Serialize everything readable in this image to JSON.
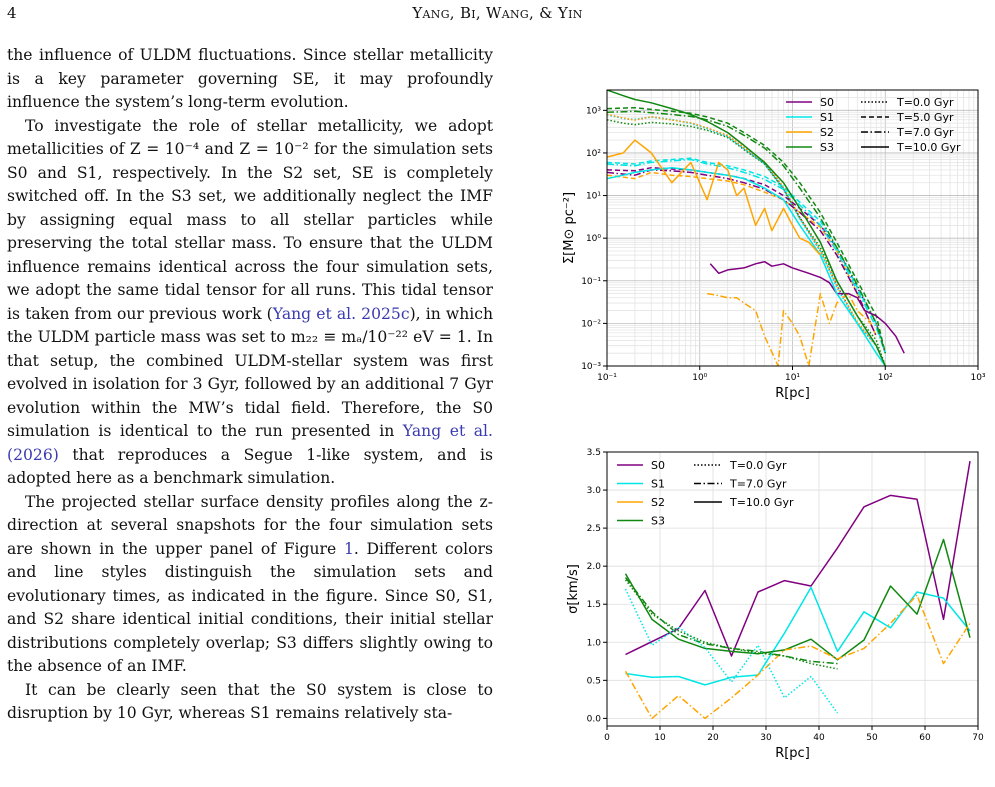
{
  "header": {
    "page_number": "4",
    "authors": "Yang, Bi, Wang, & Yin"
  },
  "body": {
    "paragraphs": [
      {
        "text": "the influence of ULDM fluctuations. Since stellar metallicity is a key parameter governing SE, it may profoundly influence the system’s long-term evolution.",
        "indent": false
      },
      {
        "text": "To investigate the role of stellar metallicity, we adopt metallicities of Z = 10⁻⁴ and Z = 10⁻² for the simulation sets S0 and S1, respectively. In the S2 set, SE is completely switched off. In the S3 set, we additionally neglect the IMF by assigning equal mass to all stellar particles while preserving the total stellar mass. To ensure that the ULDM influence remains identical across the four simulation sets, we adopt the same tidal tensor for all runs. This tidal tensor is taken from our previous work (",
        "link": "Yang et al. 2025c",
        "after": "), in which the ULDM particle mass was set to m₂₂ ≡ mₐ/10⁻²² eV = 1. In that setup, the combined ULDM-stellar system was first evolved in isolation for 3 Gyr, followed by an additional 7 Gyr evolution within the MW’s tidal field. Therefore, the S0 simulation is identical to the run presented in ",
        "link2": "Yang et al. (2026)",
        "after2": " that reproduces a Segue 1-like system, and is adopted here as a benchmark simulation.",
        "indent": true
      },
      {
        "text": "The projected stellar surface density profiles along the z-direction at several snapshots for the four simulation sets are shown in the upper panel of Figure ",
        "link": "1",
        "after": ". Different colors and line styles distinguish the simulation sets and evolutionary times, as indicated in the figure. Since S0, S1, and S2 share identical initial conditions, their initial stellar distributions completely overlap; S3 differs slightly owing to the absence of an IMF.",
        "indent": true
      },
      {
        "text": "It can be clearly seen that the S0 system is close to disruption by 10 Gyr, whereas S1 remains relatively sta-",
        "indent": true
      }
    ]
  },
  "chart_data": [
    {
      "type": "line",
      "panel": "upper",
      "xlabel": "R[pc]",
      "ylabel": "Σ[M⊙ pc⁻²]",
      "xscale": "log",
      "yscale": "log",
      "xlim": [
        0.1,
        1000
      ],
      "ylim": [
        0.001,
        3000
      ],
      "xticks": [
        "10⁻¹",
        "10⁰",
        "10¹",
        "10²",
        "10³"
      ],
      "yticks": [
        "10⁻³",
        "10⁻²",
        "10⁻¹",
        "10⁰",
        "10¹",
        "10²",
        "10³"
      ],
      "grid": true,
      "legend_position": "top-right",
      "legend_sets": [
        {
          "name": "S0",
          "color": "#800080"
        },
        {
          "name": "S1",
          "color": "#00e5e5"
        },
        {
          "name": "S2",
          "color": "#ffa500"
        },
        {
          "name": "S3",
          "color": "#118811"
        }
      ],
      "legend_times": [
        {
          "name": "T=0.0 Gyr",
          "dash": "dotted"
        },
        {
          "name": "T=5.0 Gyr",
          "dash": "dashed"
        },
        {
          "name": "T=7.0 Gyr",
          "dash": "dashdot"
        },
        {
          "name": "T=10.0 Gyr",
          "dash": "solid"
        }
      ],
      "series": [
        {
          "set": "S0",
          "time": "T=0.0 Gyr",
          "x": [
            0.1,
            0.15,
            0.2,
            0.3,
            0.5,
            0.8,
            1.2,
            2,
            3,
            5,
            8,
            12,
            20,
            30,
            50,
            80,
            100
          ],
          "y": [
            800,
            650,
            600,
            700,
            600,
            500,
            380,
            250,
            130,
            60,
            15,
            3,
            0.5,
            0.08,
            0.01,
            0.003,
            0.001
          ]
        },
        {
          "set": "S1",
          "time": "T=0.0 Gyr",
          "x": [
            0.1,
            0.15,
            0.2,
            0.3,
            0.5,
            0.8,
            1.2,
            2,
            3,
            5,
            8,
            12,
            20,
            30,
            50,
            80,
            100
          ],
          "y": [
            790,
            640,
            620,
            690,
            610,
            490,
            370,
            240,
            125,
            55,
            14,
            2.8,
            0.5,
            0.07,
            0.01,
            0.003,
            0.001
          ]
        },
        {
          "set": "S2",
          "time": "T=0.0 Gyr",
          "x": [
            0.1,
            0.15,
            0.2,
            0.3,
            0.5,
            0.8,
            1.2,
            2,
            3,
            5,
            8,
            12,
            20,
            30,
            50,
            80,
            100
          ],
          "y": [
            810,
            660,
            590,
            710,
            590,
            510,
            390,
            260,
            135,
            62,
            16,
            3.1,
            0.52,
            0.075,
            0.011,
            0.003,
            0.001
          ]
        },
        {
          "set": "S3",
          "time": "T=0.0 Gyr",
          "x": [
            0.1,
            0.15,
            0.2,
            0.3,
            0.5,
            0.8,
            1.2,
            2,
            3,
            5,
            8,
            12,
            20,
            30,
            50,
            80,
            100
          ],
          "y": [
            600,
            500,
            460,
            520,
            480,
            420,
            340,
            230,
            120,
            55,
            14,
            3,
            0.6,
            0.1,
            0.015,
            0.004,
            0.001
          ]
        },
        {
          "set": "S0",
          "time": "T=5.0 Gyr",
          "x": [
            0.1,
            0.2,
            0.3,
            0.5,
            0.8,
            1.2,
            2,
            3,
            5,
            8,
            12,
            20,
            30,
            50,
            80,
            100
          ],
          "y": [
            40,
            38,
            45,
            42,
            40,
            35,
            30,
            25,
            18,
            10,
            5,
            2,
            0.6,
            0.07,
            0.01,
            0.002
          ]
        },
        {
          "set": "S1",
          "time": "T=5.0 Gyr",
          "x": [
            0.1,
            0.2,
            0.3,
            0.5,
            0.8,
            1.2,
            2,
            3,
            5,
            8,
            12,
            20,
            30,
            50,
            80,
            100
          ],
          "y": [
            60,
            55,
            65,
            70,
            75,
            60,
            50,
            40,
            28,
            16,
            7,
            2.5,
            0.6,
            0.07,
            0.01,
            0.002
          ]
        },
        {
          "set": "S2",
          "time": "T=5.0 Gyr",
          "x": [
            0.1,
            0.2,
            0.3,
            0.5,
            0.8,
            1.2,
            2,
            3,
            5,
            8,
            12,
            20,
            30,
            50,
            80
          ],
          "y": [
            30,
            25,
            35,
            30,
            28,
            25,
            22,
            18,
            12,
            8,
            4,
            1.8,
            0.5,
            0.05,
            0.005
          ]
        },
        {
          "set": "S3",
          "time": "T=5.0 Gyr",
          "x": [
            0.1,
            0.2,
            0.3,
            0.5,
            0.8,
            1.2,
            2,
            3,
            5,
            8,
            12,
            20,
            30,
            50,
            80,
            100
          ],
          "y": [
            1100,
            1150,
            1050,
            950,
            850,
            700,
            500,
            300,
            150,
            60,
            20,
            4,
            0.8,
            0.1,
            0.015,
            0.002
          ]
        },
        {
          "set": "S0",
          "time": "T=7.0 Gyr",
          "x": [
            0.1,
            0.2,
            0.3,
            0.5,
            0.8,
            1.2,
            2,
            3,
            5,
            8,
            12,
            20,
            30,
            50,
            80
          ],
          "y": [
            35,
            30,
            40,
            38,
            35,
            30,
            25,
            20,
            14,
            8,
            4,
            1.5,
            0.4,
            0.05,
            0.005
          ]
        },
        {
          "set": "S1",
          "time": "T=7.0 Gyr",
          "x": [
            0.1,
            0.2,
            0.3,
            0.5,
            0.8,
            1.2,
            2,
            3,
            5,
            8,
            12,
            20,
            30,
            50,
            80,
            100
          ],
          "y": [
            55,
            50,
            60,
            65,
            70,
            55,
            45,
            35,
            24,
            14,
            6,
            2,
            0.5,
            0.06,
            0.008,
            0.002
          ]
        },
        {
          "set": "S2",
          "time": "T=7.0 Gyr",
          "x": [
            1.2,
            1.6,
            2,
            2.5,
            3,
            4,
            5,
            7,
            8,
            10,
            12,
            15,
            20,
            25,
            30,
            40,
            50,
            70
          ],
          "y": [
            0.05,
            0.045,
            0.04,
            0.04,
            0.03,
            0.02,
            0.005,
            0.001,
            0.02,
            0.01,
            0.005,
            0.001,
            0.05,
            0.01,
            0.03,
            0.05,
            0.02,
            0.01
          ]
        },
        {
          "set": "S3",
          "time": "T=7.0 Gyr",
          "x": [
            0.1,
            0.2,
            0.3,
            0.5,
            0.8,
            1.2,
            2,
            3,
            5,
            8,
            12,
            20,
            30,
            50,
            80,
            100
          ],
          "y": [
            900,
            950,
            880,
            800,
            720,
            600,
            420,
            260,
            130,
            50,
            15,
            3,
            0.6,
            0.08,
            0.01,
            0.002
          ]
        },
        {
          "set": "S0",
          "time": "T=10.0 Gyr",
          "x": [
            1.3,
            1.6,
            2,
            3,
            4,
            5,
            6,
            8,
            10,
            15,
            20,
            25,
            30,
            40,
            50,
            60,
            80,
            100,
            130,
            160
          ],
          "y": [
            0.25,
            0.15,
            0.18,
            0.2,
            0.25,
            0.28,
            0.22,
            0.25,
            0.2,
            0.15,
            0.12,
            0.09,
            0.05,
            0.05,
            0.04,
            0.02,
            0.015,
            0.01,
            0.005,
            0.002
          ]
        },
        {
          "set": "S1",
          "time": "T=10.0 Gyr",
          "x": [
            0.1,
            0.15,
            0.2,
            0.3,
            0.5,
            0.8,
            1.2,
            2,
            3,
            5,
            8,
            12,
            20,
            30,
            50,
            80,
            100
          ],
          "y": [
            25,
            30,
            35,
            40,
            45,
            40,
            35,
            30,
            25,
            15,
            8,
            2,
            0.4,
            0.05,
            0.01,
            0.002,
            0.001
          ]
        },
        {
          "set": "S2",
          "time": "T=10.0 Gyr",
          "x": [
            0.1,
            0.15,
            0.2,
            0.3,
            0.5,
            0.8,
            1.2,
            1.6,
            2,
            2.5,
            3,
            4,
            5,
            6,
            8,
            10,
            12,
            15,
            20
          ],
          "y": [
            80,
            100,
            200,
            100,
            20,
            60,
            8,
            60,
            40,
            10,
            15,
            2,
            5,
            1.5,
            5,
            2,
            1,
            0.8,
            0.4
          ]
        },
        {
          "set": "S3",
          "time": "T=10.0 Gyr",
          "x": [
            0.1,
            0.15,
            0.2,
            0.3,
            0.5,
            0.8,
            1.2,
            2,
            3,
            5,
            8,
            12,
            20,
            30,
            50,
            80,
            100
          ],
          "y": [
            3000,
            2200,
            1800,
            1500,
            1100,
            800,
            550,
            300,
            150,
            60,
            20,
            5,
            0.8,
            0.1,
            0.015,
            0.003,
            0.001
          ]
        }
      ]
    },
    {
      "type": "line",
      "panel": "lower",
      "xlabel": "R[pc]",
      "ylabel": "σ[km/s]",
      "xlim": [
        0,
        70
      ],
      "ylim": [
        -0.1,
        3.5
      ],
      "xticks": [
        "0",
        "10",
        "20",
        "30",
        "40",
        "50",
        "60",
        "70"
      ],
      "yticks": [
        "0.0",
        "0.5",
        "1.0",
        "1.5",
        "2.0",
        "2.5",
        "3.0",
        "3.5"
      ],
      "grid": true,
      "legend_position": "top-left",
      "legend_sets": [
        {
          "name": "S0",
          "color": "#800080"
        },
        {
          "name": "S1",
          "color": "#00e5e5"
        },
        {
          "name": "S2",
          "color": "#ffa500"
        },
        {
          "name": "S3",
          "color": "#118811"
        }
      ],
      "legend_times": [
        {
          "name": "T=0.0 Gyr",
          "dash": "dotted"
        },
        {
          "name": "T=7.0 Gyr",
          "dash": "dashdot"
        },
        {
          "name": "T=10.0 Gyr",
          "dash": "solid"
        }
      ],
      "series": [
        {
          "set": "S0",
          "time": "T=10.0 Gyr",
          "x": [
            3.5,
            13.5,
            18.5,
            23.5,
            28.5,
            33.5,
            38.5,
            43.5,
            48.5,
            53.5,
            58.5,
            63.5,
            68.5
          ],
          "y": [
            0.84,
            1.18,
            1.68,
            0.82,
            1.66,
            1.81,
            1.74,
            2.24,
            2.78,
            2.93,
            2.88,
            1.3,
            3.38
          ]
        },
        {
          "set": "S1",
          "time": "T=10.0 Gyr",
          "x": [
            3.5,
            8.5,
            13.5,
            18.5,
            23.5,
            28.5,
            33.5,
            38.5,
            43.5,
            48.5,
            53.5,
            58.5,
            63.5,
            68.5
          ],
          "y": [
            0.59,
            0.54,
            0.55,
            0.44,
            0.54,
            0.57,
            1.12,
            1.72,
            0.88,
            1.4,
            1.19,
            1.66,
            1.58,
            1.15
          ]
        },
        {
          "set": "S3",
          "time": "T=10.0 Gyr",
          "x": [
            3.5,
            8.5,
            13.5,
            18.5,
            23.5,
            28.5,
            33.5,
            38.5,
            43.5,
            48.5,
            53.5,
            58.5,
            63.5,
            68.5
          ],
          "y": [
            1.9,
            1.3,
            1.04,
            0.92,
            0.88,
            0.85,
            0.9,
            1.04,
            0.77,
            1.03,
            1.74,
            1.37,
            2.35,
            1.06
          ]
        },
        {
          "set": "S2",
          "time": "T=7.0 Gyr",
          "x": [
            3.5,
            8.5,
            13.5,
            18.5,
            23.5,
            28.5,
            33.5,
            38.5,
            43.5,
            48.5,
            53.5,
            58.5,
            63.5,
            68.5
          ],
          "y": [
            0.62,
            0.0,
            0.3,
            0.0,
            0.27,
            0.57,
            0.9,
            0.95,
            0.78,
            0.92,
            1.25,
            1.62,
            0.72,
            1.25
          ]
        },
        {
          "set": "S3",
          "time": "T=7.0 Gyr",
          "x": [
            3.5,
            8.5,
            13.5,
            18.5,
            23.5,
            28.5,
            33.5,
            38.5,
            43.5
          ],
          "y": [
            1.85,
            1.4,
            1.1,
            0.98,
            0.92,
            0.88,
            0.82,
            0.75,
            0.72
          ]
        },
        {
          "set": "S1",
          "time": "T=0.0 Gyr",
          "x": [
            3.5,
            8.5,
            13.5,
            18.5,
            23.5,
            28.5,
            33.5,
            38.5,
            43.5
          ],
          "y": [
            1.7,
            0.96,
            1.2,
            0.93,
            0.48,
            0.96,
            0.27,
            0.55,
            0.07
          ]
        },
        {
          "set": "S3",
          "time": "T=0.0 Gyr",
          "x": [
            3.5,
            8.5,
            13.5,
            18.5,
            23.5,
            28.5,
            33.5,
            38.5,
            43.5
          ],
          "y": [
            1.82,
            1.37,
            1.15,
            1.0,
            0.92,
            0.86,
            0.82,
            0.72,
            0.65
          ]
        }
      ]
    }
  ]
}
